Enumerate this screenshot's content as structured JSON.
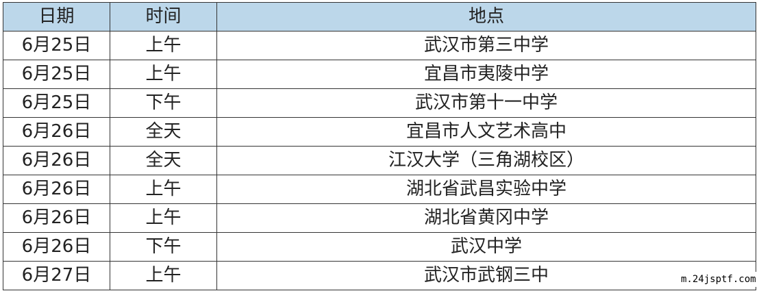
{
  "headers": [
    "日期",
    "时间",
    "地点"
  ],
  "rows": [
    [
      "6月25日",
      "上午",
      "武汉市第三中学"
    ],
    [
      "6月25日",
      "上午",
      "宜昌市夷陵中学"
    ],
    [
      "6月25日",
      "下午",
      "武汉市第十一中学"
    ],
    [
      "6月26日",
      "全天",
      "宜昌市人文艺术高中"
    ],
    [
      "6月26日",
      "全天",
      "江汉大学（三角湖校区）"
    ],
    [
      "6月26日",
      "上午",
      "湖北省武昌实验中学"
    ],
    [
      "6月26日",
      "上午",
      "湖北省黄冈中学"
    ],
    [
      "6月26日",
      "下午",
      "武汉中学"
    ],
    [
      "6月27日",
      "上午",
      "武汉市武钢三中"
    ]
  ],
  "watermark": "m.24jsptf.com",
  "colors": {
    "header_bg": "#bcd7ea",
    "border": "#333333"
  }
}
